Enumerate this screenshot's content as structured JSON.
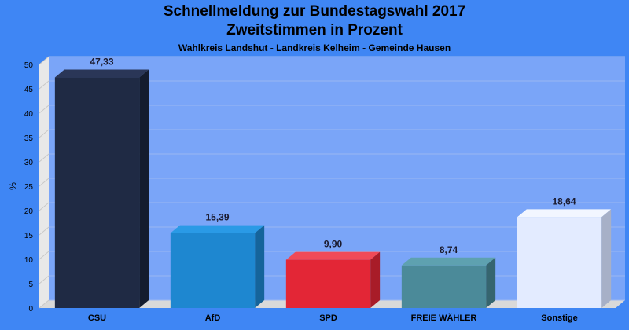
{
  "chart_data": {
    "type": "bar",
    "title": "Schnellmeldung zur Bundestagswahl 2017",
    "title_line2": "Zweitstimmen in Prozent",
    "subtitle": "Wahlkreis Landshut - Landkreis Kelheim - Gemeinde Hausen",
    "ylabel": "%",
    "ylim": [
      0,
      50
    ],
    "yticks": [
      0,
      5,
      10,
      15,
      20,
      25,
      30,
      35,
      40,
      45,
      50
    ],
    "categories": [
      "CSU",
      "AfD",
      "SPD",
      "FREIE WÄHLER",
      "Sonstige"
    ],
    "values": [
      47.33,
      15.39,
      9.9,
      8.74,
      18.64
    ],
    "value_labels": [
      "47,33",
      "15,39",
      "9,90",
      "8,74",
      "18,64"
    ],
    "colors": [
      "#1f2a44",
      "#1e87d0",
      "#e32636",
      "#4b8a99",
      "#e3ebff"
    ],
    "side_colors": [
      "#141c2e",
      "#15649b",
      "#a81c28",
      "#36656f",
      "#a7b0c7"
    ],
    "top_colors": [
      "#2a3657",
      "#2a9ae6",
      "#f04a57",
      "#5ea1b0",
      "#f2f6ff"
    ],
    "plot_background": "#7aa5f8",
    "grid": true
  }
}
